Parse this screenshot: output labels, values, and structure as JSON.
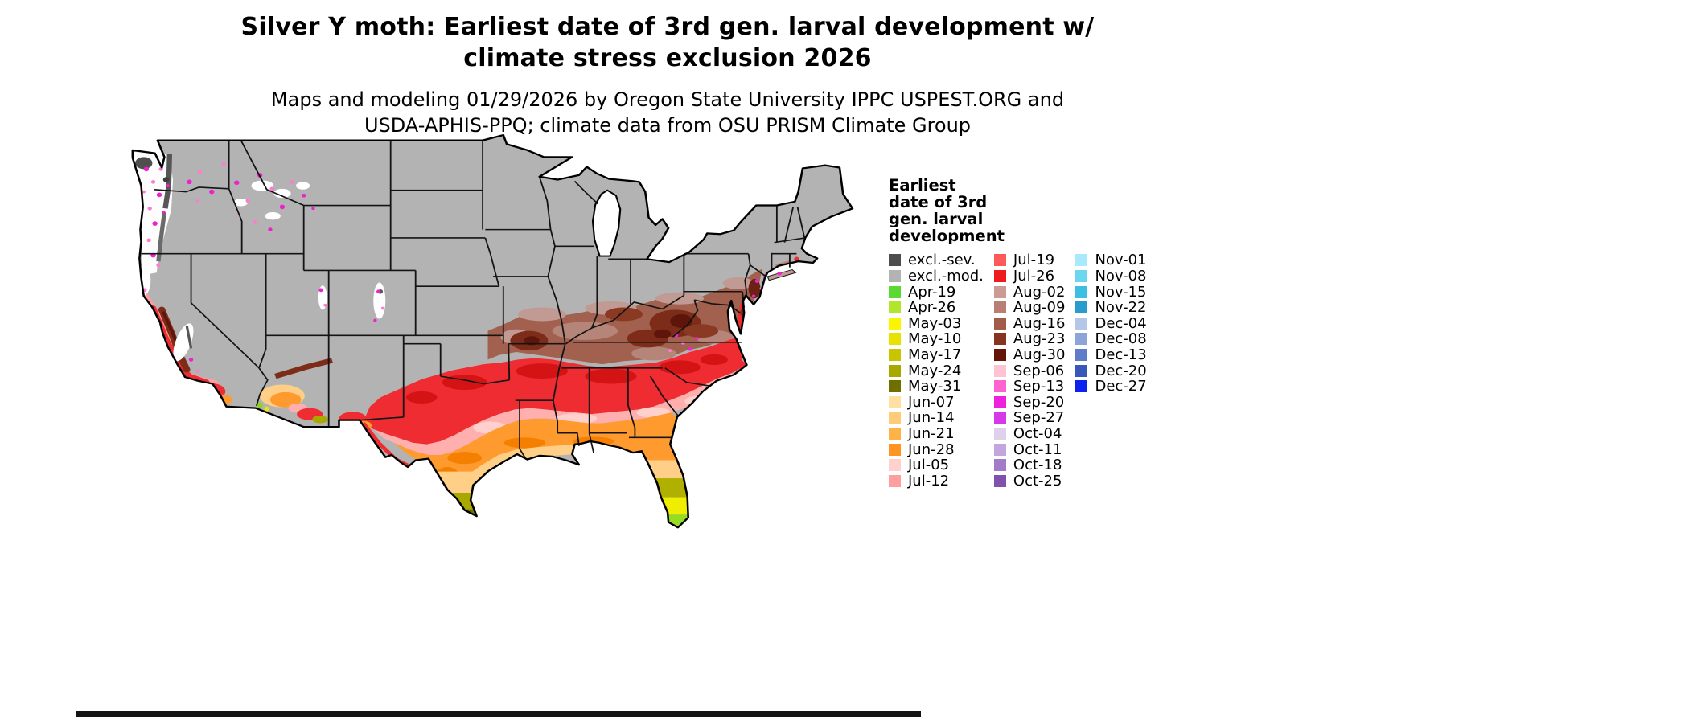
{
  "header": {
    "title_line1": "Silver Y moth: Earliest date of 3rd gen. larval development w/",
    "title_line2": "climate stress exclusion 2026",
    "subtitle_line1": "Maps and modeling 01/29/2026 by Oregon State University IPPC USPEST.ORG and",
    "subtitle_line2": "USDA-APHIS-PPQ; climate data from OSU PRISM Climate Group"
  },
  "legend": {
    "title": "Earliest date of 3rd gen. larval development",
    "columns": [
      [
        {
          "label": "excl.-sev.",
          "color": "#4d4d4d"
        },
        {
          "label": "excl.-mod.",
          "color": "#b3b3b3"
        },
        {
          "label": "Apr-19",
          "color": "#5bd832"
        },
        {
          "label": "Apr-26",
          "color": "#b2e62c"
        },
        {
          "label": "May-03",
          "color": "#fbf600"
        },
        {
          "label": "May-10",
          "color": "#e8e200"
        },
        {
          "label": "May-17",
          "color": "#c9c400"
        },
        {
          "label": "May-24",
          "color": "#a8a800"
        },
        {
          "label": "May-31",
          "color": "#6f6f00"
        },
        {
          "label": "Jun-07",
          "color": "#ffe0a0"
        },
        {
          "label": "Jun-14",
          "color": "#ffcb78"
        },
        {
          "label": "Jun-21",
          "color": "#ffb347"
        },
        {
          "label": "Jun-28",
          "color": "#ff9420"
        },
        {
          "label": "Jul-05",
          "color": "#ffd0cc"
        },
        {
          "label": "Jul-12",
          "color": "#ff9e9e"
        }
      ],
      [
        {
          "label": "Jul-19",
          "color": "#ff5a5a"
        },
        {
          "label": "Jul-26",
          "color": "#ee1c1c"
        },
        {
          "label": "Aug-02",
          "color": "#cc9c94"
        },
        {
          "label": "Aug-09",
          "color": "#ba7f74"
        },
        {
          "label": "Aug-16",
          "color": "#a35c4a"
        },
        {
          "label": "Aug-23",
          "color": "#86331f"
        },
        {
          "label": "Aug-30",
          "color": "#641508"
        },
        {
          "label": "Sep-06",
          "color": "#ffc4d4"
        },
        {
          "label": "Sep-13",
          "color": "#ff63d0"
        },
        {
          "label": "Sep-20",
          "color": "#ee22dd"
        },
        {
          "label": "Sep-27",
          "color": "#d63ae8"
        },
        {
          "label": "Oct-04",
          "color": "#ddd2ea"
        },
        {
          "label": "Oct-11",
          "color": "#c3a6de"
        },
        {
          "label": "Oct-18",
          "color": "#a27cc9"
        },
        {
          "label": "Oct-25",
          "color": "#8152ad"
        }
      ],
      [
        {
          "label": "Nov-01",
          "color": "#a8eafb"
        },
        {
          "label": "Nov-08",
          "color": "#6cd6ee"
        },
        {
          "label": "Nov-15",
          "color": "#3cbfe2"
        },
        {
          "label": "Nov-22",
          "color": "#2a9bcd"
        },
        {
          "label": "Dec-04",
          "color": "#b6c6e6"
        },
        {
          "label": "Dec-08",
          "color": "#8da4d8"
        },
        {
          "label": "Dec-13",
          "color": "#5f7cc9"
        },
        {
          "label": "Dec-20",
          "color": "#3956b9"
        },
        {
          "label": "Dec-27",
          "color": "#0c22ef"
        }
      ]
    ]
  },
  "map": {
    "land_excluded_moderate_color": "#b3b3b3",
    "state_border_color": "#141414",
    "water_color": "#ffffff"
  },
  "page": {
    "bottom_bar_color": "#141414"
  }
}
